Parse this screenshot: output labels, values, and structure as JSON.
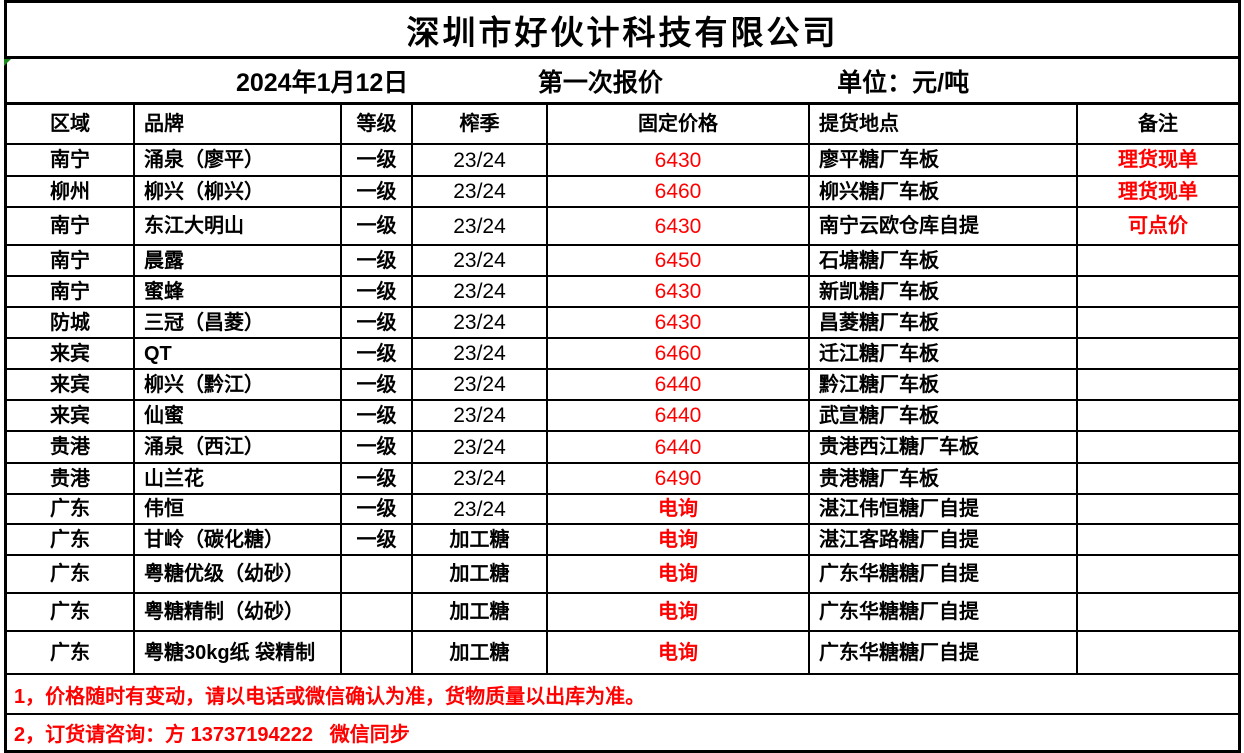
{
  "company": "深圳市好伙计科技有限公司",
  "subtitle": {
    "date": "2024年1月12日",
    "round": "第一次报价",
    "unit": "单位：元/吨"
  },
  "columns": [
    "区域",
    "品牌",
    "等级",
    "榨季",
    "固定价格",
    "提货地点",
    "备注"
  ],
  "rows": [
    {
      "region": "南宁",
      "brand": "涌泉（廖平）",
      "grade": "一级",
      "season": "23/24",
      "price": "6430",
      "pickup": "廖平糖厂车板",
      "note": "理货现单"
    },
    {
      "region": "柳州",
      "brand": "柳兴（柳兴）",
      "grade": "一级",
      "season": "23/24",
      "price": "6460",
      "pickup": "柳兴糖厂车板",
      "note": "理货现单"
    },
    {
      "region": "南宁",
      "brand": "东江大明山",
      "grade": "一级",
      "season": "23/24",
      "price": "6430",
      "pickup": "南宁云欧仓库自提",
      "note": "可点价"
    },
    {
      "region": "南宁",
      "brand": "晨露",
      "grade": "一级",
      "season": "23/24",
      "price": "6450",
      "pickup": "石塘糖厂车板",
      "note": ""
    },
    {
      "region": "南宁",
      "brand": "蜜蜂",
      "grade": "一级",
      "season": "23/24",
      "price": "6430",
      "pickup": "新凯糖厂车板",
      "note": ""
    },
    {
      "region": "防城",
      "brand": "三冠（昌菱）",
      "grade": "一级",
      "season": "23/24",
      "price": "6430",
      "pickup": "昌菱糖厂车板",
      "note": ""
    },
    {
      "region": "来宾",
      "brand": "QT",
      "grade": "一级",
      "season": "23/24",
      "price": "6460",
      "pickup": "迁江糖厂车板",
      "note": ""
    },
    {
      "region": "来宾",
      "brand": "柳兴（黔江）",
      "grade": "一级",
      "season": "23/24",
      "price": "6440",
      "pickup": "黔江糖厂车板",
      "note": ""
    },
    {
      "region": "来宾",
      "brand": "仙蜜",
      "grade": "一级",
      "season": "23/24",
      "price": "6440",
      "pickup": "武宣糖厂车板",
      "note": ""
    },
    {
      "region": "贵港",
      "brand": "涌泉（西江）",
      "grade": "一级",
      "season": "23/24",
      "price": "6440",
      "pickup": "贵港西江糖厂车板",
      "note": ""
    },
    {
      "region": "贵港",
      "brand": "山兰花",
      "grade": "一级",
      "season": "23/24",
      "price": "6490",
      "pickup": "贵港糖厂车板",
      "note": ""
    },
    {
      "region": "广东",
      "brand": "伟恒",
      "grade": "一级",
      "season": "23/24",
      "price": "电询",
      "pickup": "湛江伟恒糖厂自提",
      "note": ""
    },
    {
      "region": "广东",
      "brand": "甘岭（碳化糖）",
      "grade": "一级",
      "season": "加工糖",
      "price": "电询",
      "pickup": "湛江客路糖厂自提",
      "note": ""
    },
    {
      "region": "广东",
      "brand": "粤糖优级（幼砂）",
      "grade": "",
      "season": "加工糖",
      "price": "电询",
      "pickup": "广东华糖糖厂自提",
      "note": ""
    },
    {
      "region": "广东",
      "brand": "粤糖精制（幼砂）",
      "grade": "",
      "season": "加工糖",
      "price": "电询",
      "pickup": "广东华糖糖厂自提",
      "note": ""
    },
    {
      "region": "广东",
      "brand": "粤糖30kg纸 袋精制",
      "grade": "",
      "season": "加工糖",
      "price": "电询",
      "pickup": "广东华糖糖厂自提",
      "note": ""
    }
  ],
  "footnotes": [
    "1，价格随时有变动，请以电话或微信确认为准，货物质量以出库为准。",
    "2，订货请咨询：方 13737194222   微信同步"
  ],
  "colors": {
    "accent_red": "#FF0000",
    "text_black": "#000000",
    "cell_marker_green": "#1A8A1A"
  }
}
